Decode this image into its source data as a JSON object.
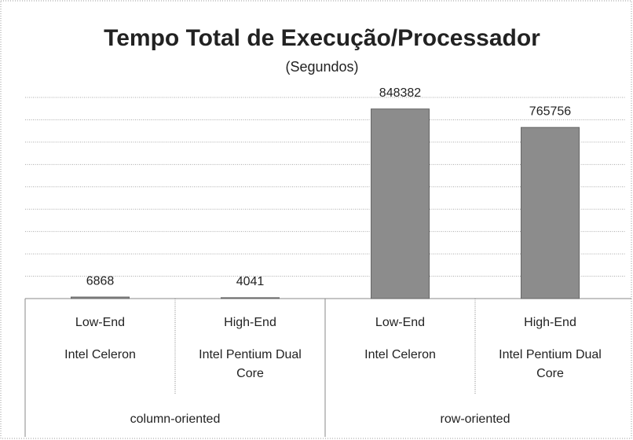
{
  "chart_data": {
    "type": "bar",
    "title": "Tempo Total de Execução/Processador",
    "subtitle": "(Segundos)",
    "categories": [
      "Low-End",
      "High-End",
      "Low-End",
      "High-End"
    ],
    "subcategories": [
      "Intel Celeron",
      "Intel Pentium Dual Core",
      "Intel Celeron",
      "Intel Pentium Dual Core"
    ],
    "groups": [
      "column-oriented",
      "row-oriented"
    ],
    "values": [
      6868,
      4041,
      848382,
      765756
    ],
    "color": "#8c8c8c",
    "ylim": [
      0,
      900000
    ],
    "yticks": [
      0,
      100000,
      200000,
      300000,
      400000,
      500000,
      600000,
      700000,
      800000,
      900000
    ],
    "grid": true
  }
}
